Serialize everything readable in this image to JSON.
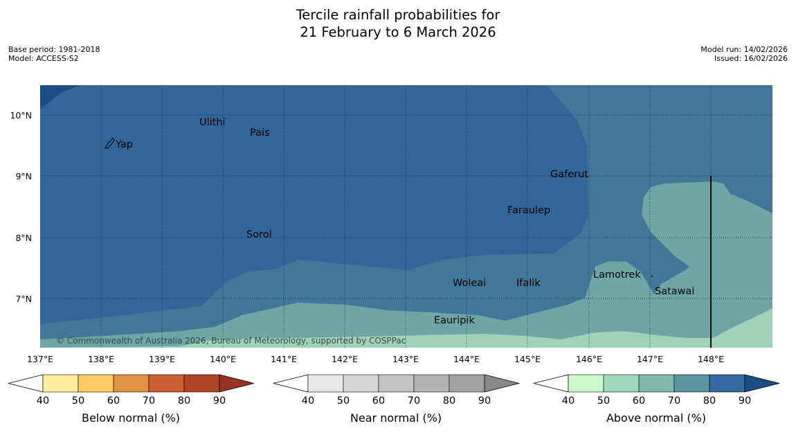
{
  "title_line1": "Tercile rainfall probabilities for",
  "title_line2": "21 February to 6 March 2026",
  "meta": {
    "base_period": "Base period: 1981-2018",
    "model": "Model: ACCESS-S2",
    "model_run": "Model run: 14/02/2026",
    "issued": "Issued: 16/02/2026"
  },
  "copyright": "© Commonwealth of Australia 2026, Bureau of Meteorology, supported by COSPPac",
  "lat_labels": [
    "10°N",
    "9°N",
    "8°N",
    "7°N"
  ],
  "lon_labels": [
    "137°E",
    "138°E",
    "139°E",
    "140°E",
    "141°E",
    "142°E",
    "143°E",
    "144°E",
    "145°E",
    "146°E",
    "147°E",
    "148°E"
  ],
  "places": {
    "ulithi": "Ulithi",
    "pais": "Pais",
    "yap": "Yap",
    "gaferut": "Gaferut",
    "faraulep": "Faraulep",
    "sorol": "Sorol",
    "lamotrek": "Lamotrek",
    "woleai": "Woleai",
    "ifalik": "Ifalik",
    "satawal": "Satawal",
    "eauripik": "Eauripik"
  },
  "colorbars": {
    "below": {
      "label": "Below normal (%)",
      "ticks": [
        "40",
        "50",
        "60",
        "70",
        "80",
        "90"
      ],
      "colors": [
        "#ffeea0",
        "#fecb65",
        "#e09345",
        "#cc6032",
        "#b04525",
        "#973320"
      ]
    },
    "near": {
      "label": "Near normal (%)",
      "ticks": [
        "40",
        "50",
        "60",
        "70",
        "80",
        "90"
      ],
      "colors": [
        "#e8e8e8",
        "#d6d6d6",
        "#c4c4c4",
        "#b4b4b4",
        "#a2a2a2",
        "#888888"
      ]
    },
    "above": {
      "label": "Above normal (%)",
      "ticks": [
        "40",
        "50",
        "60",
        "70",
        "80",
        "90"
      ],
      "colors": [
        "#cbf8c8",
        "#a0d8bc",
        "#80b8ad",
        "#5c94a0",
        "#346aa0",
        "#1c4d85"
      ]
    }
  },
  "map_colors": {
    "above_40_50": "#9fd2b8",
    "above_50_60": "#6ea5a5",
    "above_60_70": "#417899",
    "above_70_80": "#326699",
    "above_80_90": "#1c4d85"
  }
}
